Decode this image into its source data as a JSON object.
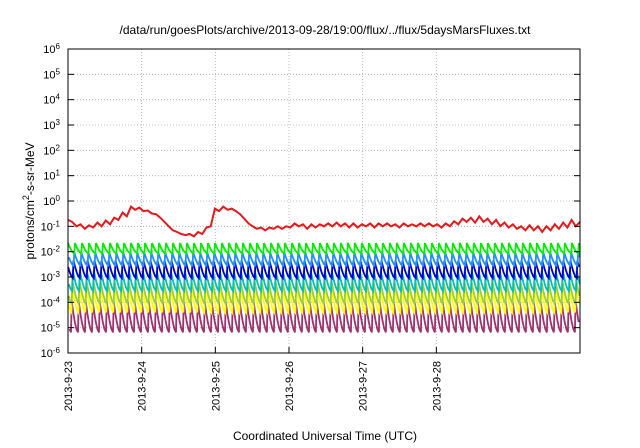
{
  "chart_data": {
    "type": "line",
    "title": "/data/run/goesPlots/archive/2013-09-28/19:00/flux/../flux/5daysMarsFluxes.txt",
    "xlabel": "Coordinated Universal Time (UTC)",
    "ylabel_parts": [
      "protons/cm",
      "2",
      "-s-sr-MeV"
    ],
    "x_ticks": [
      "2013-9-23",
      "2013-9-24",
      "2013-9-25",
      "2013-9-26",
      "2013-9-27",
      "2013-9-28"
    ],
    "x_range_days": [
      0,
      6.95
    ],
    "y_scale": "log",
    "ylim": [
      1e-06,
      1000000.0
    ],
    "y_ticks": [
      {
        "base": "10",
        "exp": "-6"
      },
      {
        "base": "10",
        "exp": "-5"
      },
      {
        "base": "10",
        "exp": "-4"
      },
      {
        "base": "10",
        "exp": "-3"
      },
      {
        "base": "10",
        "exp": "-2"
      },
      {
        "base": "10",
        "exp": "-1"
      },
      {
        "base": "10",
        "exp": "0"
      },
      {
        "base": "10",
        "exp": "1"
      },
      {
        "base": "10",
        "exp": "2"
      },
      {
        "base": "10",
        "exp": "3"
      },
      {
        "base": "10",
        "exp": "4"
      },
      {
        "base": "10",
        "exp": "5"
      },
      {
        "base": "10",
        "exp": "6"
      }
    ],
    "grid": true,
    "series": [
      {
        "color": "#e41a1c",
        "style": "peaked",
        "values": [
          0.18,
          0.15,
          0.1,
          0.12,
          0.08,
          0.11,
          0.09,
          0.14,
          0.1,
          0.17,
          0.12,
          0.22,
          0.18,
          0.35,
          0.25,
          0.6,
          0.45,
          0.55,
          0.4,
          0.42,
          0.32,
          0.3,
          0.22,
          0.15,
          0.1,
          0.07,
          0.06,
          0.05,
          0.045,
          0.05,
          0.04,
          0.06,
          0.05,
          0.09,
          0.1,
          0.5,
          0.4,
          0.6,
          0.45,
          0.5,
          0.4,
          0.3,
          0.2,
          0.13,
          0.1,
          0.08,
          0.09,
          0.07,
          0.09,
          0.08,
          0.1,
          0.08,
          0.1,
          0.09,
          0.13,
          0.1,
          0.12,
          0.08,
          0.12,
          0.09,
          0.12,
          0.1,
          0.13,
          0.1,
          0.14,
          0.1,
          0.13,
          0.09,
          0.13,
          0.09,
          0.12,
          0.1,
          0.13,
          0.09,
          0.13,
          0.1,
          0.13,
          0.1,
          0.12,
          0.09,
          0.13,
          0.1,
          0.12,
          0.1,
          0.13,
          0.1,
          0.13,
          0.1,
          0.12,
          0.09,
          0.13,
          0.1,
          0.16,
          0.12,
          0.2,
          0.15,
          0.22,
          0.14,
          0.25,
          0.15,
          0.2,
          0.12,
          0.18,
          0.1,
          0.14,
          0.09,
          0.12,
          0.08,
          0.1,
          0.07,
          0.11,
          0.07,
          0.1,
          0.06,
          0.1,
          0.07,
          0.12,
          0.08,
          0.14,
          0.09,
          0.18,
          0.1,
          0.15
        ]
      },
      {
        "color": "#00ee00",
        "style": "sawtooth",
        "high": 0.022,
        "low": 0.0085,
        "period_days": 0.095,
        "phase": 0.0
      },
      {
        "color": "#1e90ff",
        "style": "sawtooth",
        "high": 0.0095,
        "low": 0.0028,
        "period_days": 0.095,
        "phase": 0.01
      },
      {
        "color": "#0000cd",
        "style": "sawtooth",
        "high": 0.0045,
        "low": 0.0009,
        "period_days": 0.095,
        "phase": 0.02
      },
      {
        "color": "#00bfbf",
        "style": "sawtooth",
        "high": 0.0018,
        "low": 0.00028,
        "period_days": 0.095,
        "phase": 0.03
      },
      {
        "color": "#9acd32",
        "style": "sawtooth",
        "high": 0.00075,
        "low": 9e-05,
        "period_days": 0.095,
        "phase": 0.035
      },
      {
        "color": "#ffff00",
        "style": "sawtooth",
        "high": 0.00045,
        "low": 4e-05,
        "period_days": 0.095,
        "phase": 0.04
      },
      {
        "color": "#a0306f",
        "style": "sawtooth",
        "high": 0.00011,
        "low": 6.5e-06,
        "period_days": 0.095,
        "phase": 0.045
      }
    ]
  }
}
